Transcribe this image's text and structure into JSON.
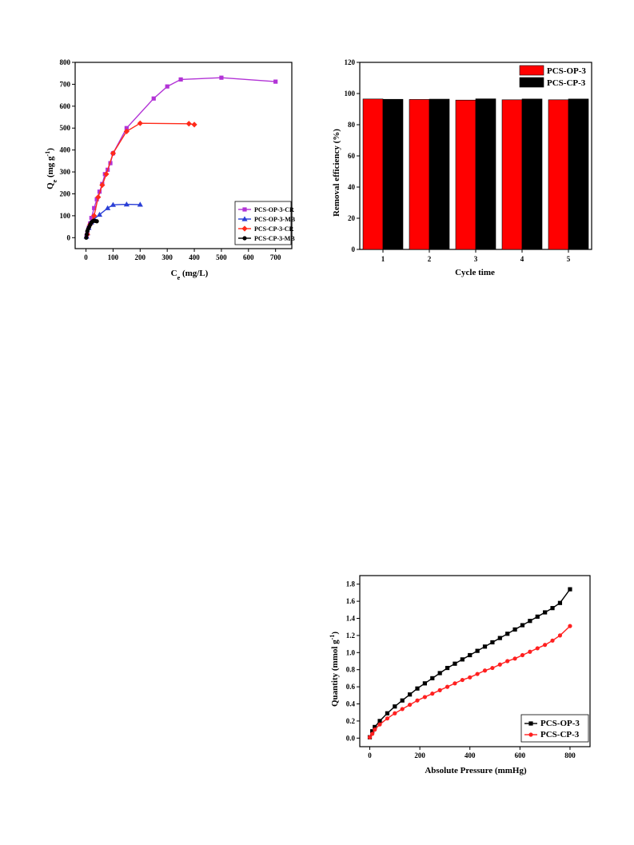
{
  "chart_data": [
    {
      "id": "isotherm",
      "type": "line",
      "xlabel": "C",
      "xlabel_sub": "e",
      "xlabel_unit": " (mg/L)",
      "ylabel": "Q",
      "ylabel_sub": "e",
      "ylabel_unit_a": " (mg g",
      "ylabel_sup": "-1",
      "ylabel_unit_b": ")",
      "xlim": [
        -40,
        760
      ],
      "ylim": [
        -50,
        800
      ],
      "xticks": [
        0,
        100,
        200,
        300,
        400,
        500,
        600,
        700
      ],
      "yticks": [
        0,
        100,
        200,
        300,
        400,
        500,
        600,
        700,
        800
      ],
      "legend_position": "bottom-right",
      "series": [
        {
          "name": "PCS-OP-3-CR",
          "color": "#b233d6",
          "marker": "square",
          "x": [
            2,
            5,
            10,
            15,
            20,
            30,
            40,
            50,
            60,
            70,
            80,
            90,
            100,
            150,
            250,
            300,
            350,
            500,
            700
          ],
          "y": [
            5,
            20,
            45,
            65,
            90,
            135,
            175,
            210,
            245,
            290,
            310,
            340,
            385,
            500,
            635,
            690,
            722,
            730,
            712
          ]
        },
        {
          "name": "PCS-OP-3-MB",
          "color": "#2a3fd6",
          "marker": "triangle",
          "x": [
            2,
            5,
            10,
            20,
            30,
            50,
            80,
            100,
            150,
            200
          ],
          "y": [
            5,
            20,
            45,
            70,
            85,
            105,
            135,
            150,
            152,
            151
          ]
        },
        {
          "name": "PCS-CP-3-CR",
          "color": "#ff2a1a",
          "marker": "diamond",
          "x": [
            5,
            15,
            30,
            45,
            60,
            75,
            100,
            150,
            200,
            380,
            400
          ],
          "y": [
            15,
            60,
            100,
            185,
            240,
            290,
            385,
            485,
            522,
            520,
            516
          ]
        },
        {
          "name": "PCS-CP-3-MB",
          "color": "#000000",
          "marker": "circle",
          "x": [
            1,
            3,
            5,
            8,
            12,
            16,
            20,
            25,
            30,
            35,
            40
          ],
          "y": [
            0,
            15,
            30,
            40,
            50,
            60,
            70,
            75,
            78,
            76,
            75
          ]
        }
      ]
    },
    {
      "id": "cycles",
      "type": "bar",
      "xlabel": "Cycle time",
      "ylabel": "Removal efficiency (%)",
      "categories": [
        "1",
        "2",
        "3",
        "4",
        "5"
      ],
      "ylim": [
        0,
        120
      ],
      "yticks": [
        0,
        20,
        40,
        60,
        80,
        100,
        120
      ],
      "legend_position": "top-right",
      "series": [
        {
          "name": "PCS-OP-3",
          "color": "#ff0000",
          "values": [
            96.5,
            96.2,
            95.8,
            96.0,
            96.0
          ]
        },
        {
          "name": "PCS-CP-3",
          "color": "#000000",
          "values": [
            96.3,
            96.4,
            96.6,
            96.5,
            96.5
          ]
        }
      ]
    },
    {
      "id": "adsorption",
      "type": "line",
      "xlabel": "Absolute Pressure (mmHg)",
      "ylabel_a": "Quantity (mmol g",
      "ylabel_sup": "-1",
      "ylabel_b": ")",
      "xlim": [
        -40,
        880
      ],
      "ylim": [
        -0.1,
        1.9
      ],
      "xticks": [
        0,
        200,
        400,
        600,
        800
      ],
      "yticks": [
        0.0,
        0.2,
        0.4,
        0.6,
        0.8,
        1.0,
        1.2,
        1.4,
        1.6,
        1.8
      ],
      "legend_position": "bottom-right",
      "series": [
        {
          "name": "PCS-OP-3",
          "color": "#000000",
          "marker": "square",
          "x": [
            0,
            10,
            20,
            40,
            70,
            100,
            130,
            160,
            190,
            220,
            250,
            280,
            310,
            340,
            370,
            400,
            430,
            460,
            490,
            520,
            550,
            580,
            610,
            640,
            670,
            700,
            730,
            760,
            800
          ],
          "y": [
            0.01,
            0.08,
            0.13,
            0.2,
            0.29,
            0.37,
            0.44,
            0.51,
            0.58,
            0.64,
            0.7,
            0.76,
            0.82,
            0.87,
            0.92,
            0.97,
            1.02,
            1.07,
            1.12,
            1.17,
            1.22,
            1.27,
            1.32,
            1.37,
            1.42,
            1.47,
            1.52,
            1.58,
            1.74
          ]
        },
        {
          "name": "PCS-CP-3",
          "color": "#ff2020",
          "marker": "circle",
          "x": [
            0,
            10,
            20,
            40,
            70,
            100,
            130,
            160,
            190,
            220,
            250,
            280,
            310,
            340,
            370,
            400,
            430,
            460,
            490,
            520,
            550,
            580,
            610,
            640,
            670,
            700,
            730,
            760,
            800
          ],
          "y": [
            0.01,
            0.05,
            0.1,
            0.16,
            0.23,
            0.29,
            0.34,
            0.39,
            0.44,
            0.48,
            0.52,
            0.56,
            0.6,
            0.64,
            0.68,
            0.71,
            0.75,
            0.79,
            0.82,
            0.86,
            0.9,
            0.93,
            0.97,
            1.01,
            1.05,
            1.09,
            1.14,
            1.2,
            1.31
          ]
        }
      ]
    }
  ]
}
